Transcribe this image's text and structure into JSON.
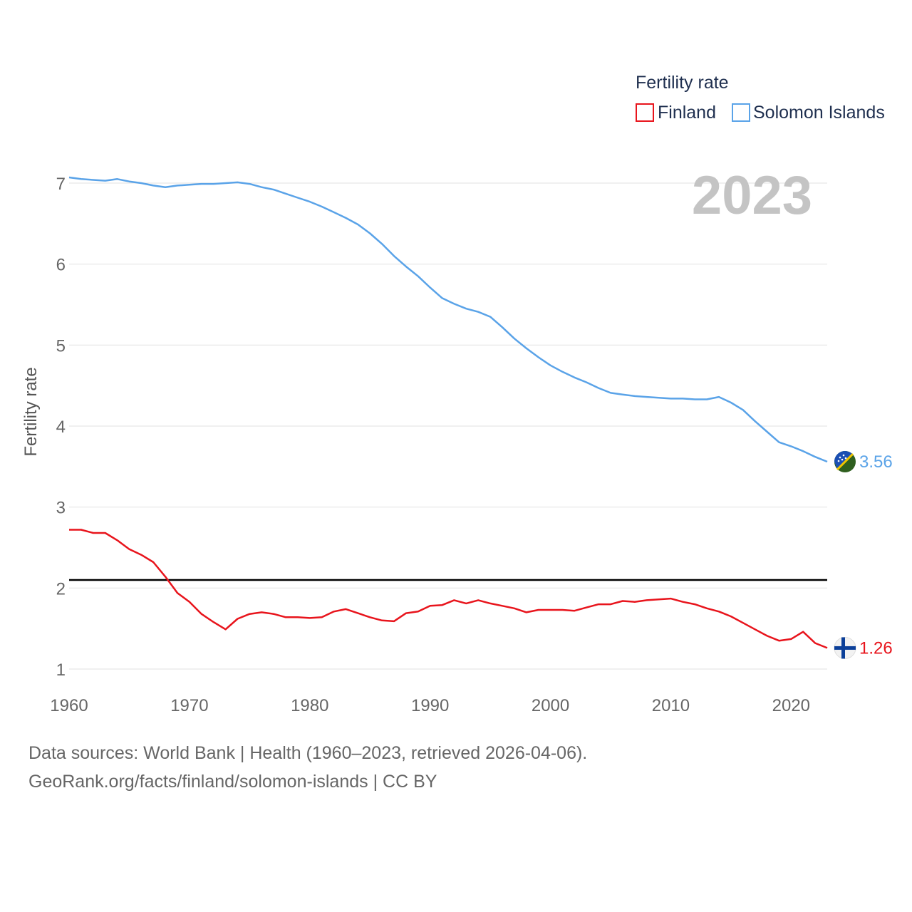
{
  "chart_data": {
    "type": "line",
    "title": "",
    "ylabel": "Fertility rate",
    "xlabel": "",
    "current_year_label": "2023",
    "legend": {
      "title": "Fertility rate",
      "placement": "top-right"
    },
    "xlim": [
      1960,
      2023
    ],
    "ylim": [
      0.9,
      7.1
    ],
    "x_ticks": [
      1960,
      1970,
      1980,
      1990,
      2000,
      2010,
      2020
    ],
    "y_ticks": [
      1,
      2,
      3,
      4,
      5,
      6,
      7
    ],
    "grid": true,
    "reference_line": {
      "value": 2.1,
      "color": "#000000"
    },
    "x": [
      1960,
      1961,
      1962,
      1963,
      1964,
      1965,
      1966,
      1967,
      1968,
      1969,
      1970,
      1971,
      1972,
      1973,
      1974,
      1975,
      1976,
      1977,
      1978,
      1979,
      1980,
      1981,
      1982,
      1983,
      1984,
      1985,
      1986,
      1987,
      1988,
      1989,
      1990,
      1991,
      1992,
      1993,
      1994,
      1995,
      1996,
      1997,
      1998,
      1999,
      2000,
      2001,
      2002,
      2003,
      2004,
      2005,
      2006,
      2007,
      2008,
      2009,
      2010,
      2011,
      2012,
      2013,
      2014,
      2015,
      2016,
      2017,
      2018,
      2019,
      2020,
      2021,
      2022,
      2023
    ],
    "series": [
      {
        "name": "Finland",
        "color": "#e8141c",
        "end_label": "1.26",
        "flag_icon": "finland-flag-icon",
        "values": [
          2.72,
          2.72,
          2.68,
          2.68,
          2.59,
          2.48,
          2.41,
          2.32,
          2.14,
          1.94,
          1.83,
          1.68,
          1.58,
          1.49,
          1.62,
          1.68,
          1.7,
          1.68,
          1.64,
          1.64,
          1.63,
          1.64,
          1.71,
          1.74,
          1.69,
          1.64,
          1.6,
          1.59,
          1.69,
          1.71,
          1.78,
          1.79,
          1.85,
          1.81,
          1.85,
          1.81,
          1.78,
          1.75,
          1.7,
          1.73,
          1.73,
          1.73,
          1.72,
          1.76,
          1.8,
          1.8,
          1.84,
          1.83,
          1.85,
          1.86,
          1.87,
          1.83,
          1.8,
          1.75,
          1.71,
          1.65,
          1.57,
          1.49,
          1.41,
          1.35,
          1.37,
          1.46,
          1.32,
          1.26
        ]
      },
      {
        "name": "Solomon Islands",
        "color": "#5aa3e8",
        "end_label": "3.56",
        "flag_icon": "solomon-islands-flag-icon",
        "values": [
          7.07,
          7.05,
          7.04,
          7.03,
          7.05,
          7.02,
          7.0,
          6.97,
          6.95,
          6.97,
          6.98,
          6.99,
          6.99,
          7.0,
          7.01,
          6.99,
          6.95,
          6.92,
          6.87,
          6.82,
          6.77,
          6.71,
          6.64,
          6.57,
          6.49,
          6.38,
          6.25,
          6.1,
          5.97,
          5.85,
          5.71,
          5.58,
          5.51,
          5.45,
          5.41,
          5.35,
          5.22,
          5.08,
          4.96,
          4.85,
          4.75,
          4.67,
          4.6,
          4.54,
          4.47,
          4.41,
          4.39,
          4.37,
          4.36,
          4.35,
          4.34,
          4.34,
          4.33,
          4.33,
          4.36,
          4.29,
          4.2,
          4.06,
          3.93,
          3.8,
          3.75,
          3.69,
          3.62,
          3.56
        ]
      }
    ]
  },
  "footer": {
    "sources": "Data sources: World Bank | Health (1960–2023, retrieved 2026-04-06).",
    "link": "GeoRank.org/facts/finland/solomon-islands | CC BY"
  }
}
